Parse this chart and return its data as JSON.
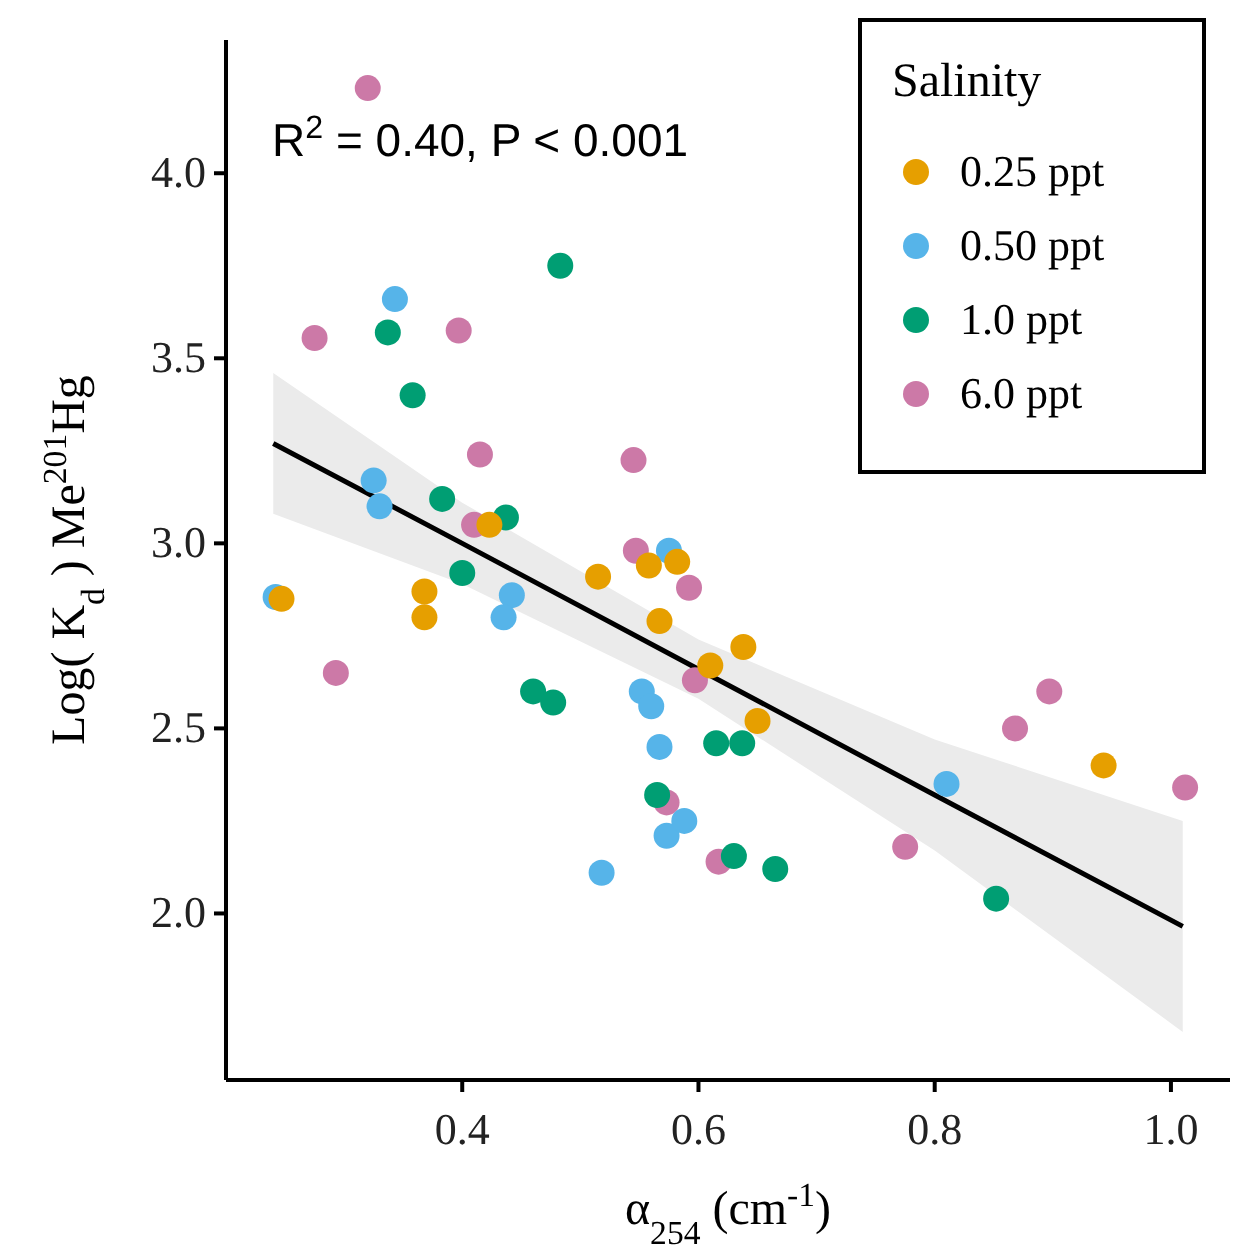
{
  "chart_data": {
    "type": "scatter",
    "xlabel": "α$_{254}$ (cm$^{-1}$)",
    "ylabel": "Log( K$_{d}$ ) Me$^{201}$Hg",
    "legend_title": "Salinity",
    "annotations": [
      "R$^{2}$ = 0.40, P < 0.001"
    ],
    "xlim": [
      0.2,
      1.05
    ],
    "xticks": [
      {
        "value": 0.4,
        "label": "0.4"
      },
      {
        "value": 0.6,
        "label": "0.6"
      },
      {
        "value": 0.8,
        "label": "0.8"
      },
      {
        "value": 1.0,
        "label": "1.0"
      }
    ],
    "ylim": [
      1.55,
      4.36
    ],
    "yticks": [
      {
        "value": 2.0,
        "label": "2.0"
      },
      {
        "value": 2.5,
        "label": "2.5"
      },
      {
        "value": 3.0,
        "label": "3.0"
      },
      {
        "value": 3.5,
        "label": "3.5"
      },
      {
        "value": 4.0,
        "label": "4.0"
      }
    ],
    "grid": false,
    "legend": "top right",
    "marker": "circle",
    "series": [
      {
        "type": "line",
        "color": "#000000",
        "line_style": "solid",
        "marker": "none",
        "x": [
          0.24,
          0.4,
          0.6,
          0.8,
          1.01
        ],
        "values": [
          3.27,
          3.0,
          2.66,
          2.32,
          1.965
        ],
        "lower": [
          3.08,
          2.89,
          2.58,
          2.17,
          1.68
        ],
        "upper": [
          3.46,
          3.11,
          2.74,
          2.47,
          2.25
        ]
      },
      {
        "name": "0.25 ppt",
        "color": "#e69f00",
        "x": [
          0.247,
          0.368,
          0.368,
          0.423,
          0.515,
          0.558,
          0.582,
          0.567,
          0.61,
          0.638,
          0.65,
          0.943
        ],
        "values": [
          2.85,
          2.87,
          2.8,
          3.05,
          2.91,
          2.94,
          2.95,
          2.79,
          2.67,
          2.72,
          2.52,
          2.4
        ]
      },
      {
        "name": "0.50 ppt",
        "color": "#56b4e9",
        "x": [
          0.242,
          0.325,
          0.33,
          0.343,
          0.442,
          0.435,
          0.575,
          0.552,
          0.56,
          0.567,
          0.518,
          0.573,
          0.588,
          0.81
        ],
        "values": [
          2.855,
          3.17,
          3.1,
          3.66,
          2.86,
          2.8,
          2.98,
          2.6,
          2.56,
          2.45,
          2.11,
          2.21,
          2.25,
          2.35
        ]
      },
      {
        "name": "1.0 ppt",
        "color": "#009e73",
        "x": [
          0.337,
          0.358,
          0.383,
          0.4,
          0.437,
          0.46,
          0.477,
          0.483,
          0.565,
          0.615,
          0.637,
          0.665,
          0.63,
          0.852
        ],
        "values": [
          3.57,
          3.4,
          3.12,
          2.92,
          3.07,
          2.6,
          2.57,
          3.75,
          2.32,
          2.46,
          2.46,
          2.12,
          2.155,
          2.04
        ]
      },
      {
        "name": "6.0 ppt",
        "color": "#cc79a7",
        "x": [
          0.32,
          0.275,
          0.397,
          0.415,
          0.41,
          0.545,
          0.547,
          0.592,
          0.597,
          0.293,
          0.573,
          0.617,
          0.775,
          0.868,
          0.897,
          1.012
        ],
        "values": [
          4.23,
          3.555,
          3.575,
          3.24,
          3.05,
          3.225,
          2.98,
          2.88,
          2.63,
          2.65,
          2.3,
          2.14,
          2.18,
          2.5,
          2.6,
          2.34
        ]
      }
    ]
  }
}
